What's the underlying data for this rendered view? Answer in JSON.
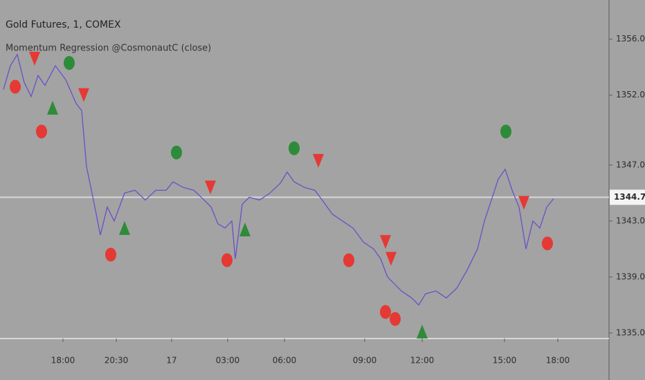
{
  "chart_data": {
    "type": "line",
    "title": "Gold Futures, 1, COMEX",
    "subtitle": "Momentum Regression @CosmonautC (close)",
    "xlim": [
      0,
      880
    ],
    "ylim": [
      1334.6,
      1358.8
    ],
    "xticks": [
      {
        "value": 91,
        "label": "18:00"
      },
      {
        "value": 168,
        "label": "20:30"
      },
      {
        "value": 248,
        "label": "17"
      },
      {
        "value": 329,
        "label": "03:00"
      },
      {
        "value": 411,
        "label": "06:00"
      },
      {
        "value": 527,
        "label": "09:00"
      },
      {
        "value": 610,
        "label": "12:00"
      },
      {
        "value": 729,
        "label": "15:00"
      },
      {
        "value": 806,
        "label": "18:00"
      }
    ],
    "yticks": [
      {
        "value": 1335,
        "label": "1335.0"
      },
      {
        "value": 1339,
        "label": "1339.0"
      },
      {
        "value": 1343,
        "label": "1343.0"
      },
      {
        "value": 1347,
        "label": "1347.0"
      },
      {
        "value": 1352,
        "label": "1352.0"
      },
      {
        "value": 1356,
        "label": "1356.0"
      }
    ],
    "last_price": 1344.7,
    "series": [
      {
        "color": "#6a4fc8",
        "x": [
          5,
          15,
          25,
          35,
          45,
          55,
          65,
          80,
          95,
          110,
          118,
          125,
          135,
          145,
          155,
          165,
          180,
          195,
          210,
          225,
          240,
          250,
          265,
          280,
          295,
          305,
          315,
          325,
          335,
          340,
          350,
          360,
          375,
          390,
          405,
          415,
          425,
          440,
          455,
          470,
          480,
          495,
          510,
          525,
          540,
          550,
          560,
          570,
          580,
          595,
          605,
          615,
          630,
          645,
          660,
          675,
          690,
          700,
          710,
          720,
          730,
          740,
          750,
          760,
          770,
          780,
          790,
          800
        ],
        "values": [
          1352.4,
          1354.1,
          1354.9,
          1352.9,
          1351.9,
          1353.4,
          1352.7,
          1354.1,
          1353.1,
          1351.4,
          1350.9,
          1346.9,
          1344.5,
          1342.0,
          1344.0,
          1343.0,
          1345.0,
          1345.2,
          1344.5,
          1345.2,
          1345.2,
          1345.8,
          1345.4,
          1345.2,
          1344.5,
          1344.0,
          1342.8,
          1342.5,
          1343.0,
          1340.3,
          1344.2,
          1344.7,
          1344.5,
          1345.0,
          1345.7,
          1346.5,
          1345.8,
          1345.4,
          1345.2,
          1344.2,
          1343.5,
          1343.0,
          1342.5,
          1341.5,
          1341.0,
          1340.3,
          1339.0,
          1338.5,
          1338.0,
          1337.5,
          1337.0,
          1337.8,
          1338.0,
          1337.5,
          1338.2,
          1339.5,
          1341.0,
          1343.0,
          1344.5,
          1346.0,
          1346.7,
          1345.2,
          1344.0,
          1341.0,
          1343.0,
          1342.5,
          1344.0,
          1344.6
        ]
      }
    ],
    "signals": [
      {
        "shape": "circle",
        "color": "#e53935",
        "x": [
          22,
          60,
          160,
          328,
          504,
          557,
          571,
          791
        ],
        "values": [
          1352.6,
          1349.4,
          1340.6,
          1340.2,
          1340.2,
          1336.5,
          1336.0,
          1341.4
        ]
      },
      {
        "shape": "circle",
        "color": "#2e8b3a",
        "x": [
          100,
          255,
          425,
          731
        ],
        "values": [
          1354.3,
          1347.9,
          1348.2,
          1349.4
        ]
      },
      {
        "shape": "triangle-down",
        "color": "#e53935",
        "x": [
          50,
          121,
          304,
          460,
          557,
          565,
          757
        ],
        "values": [
          1354.6,
          1352.0,
          1345.4,
          1347.3,
          1341.5,
          1340.3,
          1344.3
        ]
      },
      {
        "shape": "triangle-up",
        "color": "#2e8b3a",
        "x": [
          76,
          180,
          354,
          610
        ],
        "values": [
          1351.1,
          1342.5,
          1342.4,
          1335.1
        ]
      }
    ]
  }
}
